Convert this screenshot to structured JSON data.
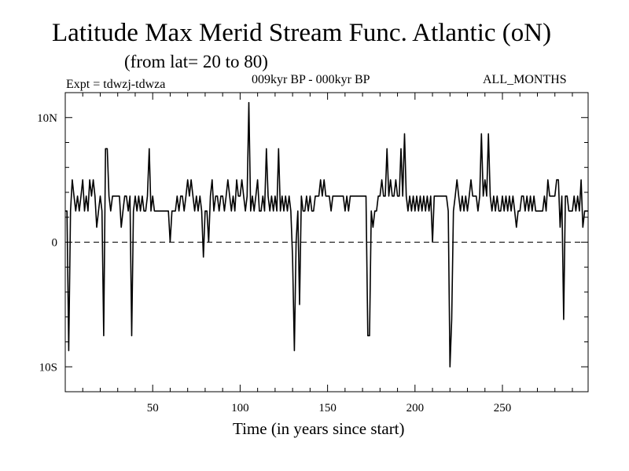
{
  "header": {
    "title": "Latitude Max Merid Stream Func. Atlantic (oN)",
    "subtitle": "(from lat= 20 to 80)",
    "experiment": "Expt = tdwzj-tdwza",
    "period": "009kyr BP - 000kyr BP",
    "months": "ALL_MONTHS"
  },
  "chart_data": {
    "type": "line",
    "title": "Latitude Max Merid Stream Func. Atlantic (oN)",
    "xlabel": "Time (in years since start)",
    "ylabel": "",
    "xlim": [
      0,
      299
    ],
    "ylim": [
      -12,
      12
    ],
    "x_ticks": [
      {
        "v": 50,
        "label": "50"
      },
      {
        "v": 100,
        "label": "100"
      },
      {
        "v": 150,
        "label": "150"
      },
      {
        "v": 200,
        "label": "200"
      },
      {
        "v": 250,
        "label": "250"
      }
    ],
    "y_ticks": [
      {
        "v": 10,
        "label": "10N"
      },
      {
        "v": 0,
        "label": "0"
      },
      {
        "v": -10,
        "label": "10S"
      }
    ],
    "zero_line": "dashed",
    "grid": false,
    "series": [
      {
        "values": [
          [
            0,
            2.5
          ],
          [
            1,
            2.5
          ],
          [
            2,
            -8.7
          ],
          [
            3,
            2.5
          ],
          [
            4,
            5.0
          ],
          [
            5,
            3.7
          ],
          [
            6,
            2.5
          ],
          [
            7,
            3.7
          ],
          [
            8,
            2.5
          ],
          [
            9,
            3.7
          ],
          [
            10,
            5.0
          ],
          [
            11,
            2.5
          ],
          [
            12,
            3.7
          ],
          [
            13,
            2.5
          ],
          [
            14,
            5.0
          ],
          [
            15,
            3.7
          ],
          [
            16,
            5.0
          ],
          [
            17,
            3.7
          ],
          [
            18,
            1.2
          ],
          [
            19,
            2.5
          ],
          [
            20,
            3.7
          ],
          [
            21,
            2.5
          ],
          [
            22,
            -7.5
          ],
          [
            23,
            7.5
          ],
          [
            24,
            7.5
          ],
          [
            25,
            3.7
          ],
          [
            26,
            2.5
          ],
          [
            27,
            3.7
          ],
          [
            28,
            3.7
          ],
          [
            29,
            3.7
          ],
          [
            30,
            3.7
          ],
          [
            31,
            3.7
          ],
          [
            32,
            1.2
          ],
          [
            33,
            2.5
          ],
          [
            34,
            3.7
          ],
          [
            35,
            3.7
          ],
          [
            36,
            2.5
          ],
          [
            37,
            3.7
          ],
          [
            38,
            -7.5
          ],
          [
            39,
            2.5
          ],
          [
            40,
            3.7
          ],
          [
            41,
            2.5
          ],
          [
            42,
            3.7
          ],
          [
            43,
            2.5
          ],
          [
            44,
            3.7
          ],
          [
            45,
            2.5
          ],
          [
            46,
            2.5
          ],
          [
            47,
            3.7
          ],
          [
            48,
            7.5
          ],
          [
            49,
            2.5
          ],
          [
            50,
            3.7
          ],
          [
            51,
            2.5
          ],
          [
            52,
            2.5
          ],
          [
            53,
            2.5
          ],
          [
            54,
            2.5
          ],
          [
            55,
            2.5
          ],
          [
            56,
            2.5
          ],
          [
            57,
            2.5
          ],
          [
            58,
            2.5
          ],
          [
            59,
            2.5
          ],
          [
            60,
            0.0
          ],
          [
            61,
            2.5
          ],
          [
            62,
            2.5
          ],
          [
            63,
            2.5
          ],
          [
            64,
            3.7
          ],
          [
            65,
            2.5
          ],
          [
            66,
            3.7
          ],
          [
            67,
            3.7
          ],
          [
            68,
            2.5
          ],
          [
            69,
            3.7
          ],
          [
            70,
            5.0
          ],
          [
            71,
            3.7
          ],
          [
            72,
            5.0
          ],
          [
            73,
            3.7
          ],
          [
            74,
            2.5
          ],
          [
            75,
            3.7
          ],
          [
            76,
            2.5
          ],
          [
            77,
            3.7
          ],
          [
            78,
            2.5
          ],
          [
            79,
            -1.2
          ],
          [
            80,
            2.5
          ],
          [
            81,
            2.5
          ],
          [
            82,
            0.0
          ],
          [
            83,
            3.7
          ],
          [
            84,
            5.0
          ],
          [
            85,
            2.5
          ],
          [
            86,
            3.7
          ],
          [
            87,
            3.7
          ],
          [
            88,
            2.5
          ],
          [
            89,
            3.7
          ],
          [
            90,
            3.7
          ],
          [
            91,
            2.5
          ],
          [
            92,
            3.7
          ],
          [
            93,
            5.0
          ],
          [
            94,
            3.7
          ],
          [
            95,
            2.5
          ],
          [
            96,
            3.7
          ],
          [
            97,
            2.5
          ],
          [
            98,
            5.0
          ],
          [
            99,
            3.7
          ],
          [
            100,
            3.7
          ],
          [
            101,
            5.0
          ],
          [
            102,
            3.7
          ],
          [
            103,
            2.5
          ],
          [
            104,
            3.7
          ],
          [
            105,
            11.2
          ],
          [
            106,
            2.5
          ],
          [
            107,
            3.7
          ],
          [
            108,
            2.5
          ],
          [
            109,
            3.7
          ],
          [
            110,
            5.0
          ],
          [
            111,
            2.5
          ],
          [
            112,
            2.5
          ],
          [
            113,
            3.7
          ],
          [
            114,
            2.5
          ],
          [
            115,
            7.5
          ],
          [
            116,
            3.7
          ],
          [
            117,
            2.5
          ],
          [
            118,
            3.7
          ],
          [
            119,
            2.5
          ],
          [
            120,
            3.7
          ],
          [
            121,
            2.5
          ],
          [
            122,
            7.5
          ],
          [
            123,
            2.5
          ],
          [
            124,
            3.7
          ],
          [
            125,
            2.5
          ],
          [
            126,
            3.7
          ],
          [
            127,
            2.5
          ],
          [
            128,
            3.7
          ],
          [
            129,
            2.5
          ],
          [
            130,
            -1.2
          ],
          [
            131,
            -8.7
          ],
          [
            132,
            0.0
          ],
          [
            133,
            2.5
          ],
          [
            134,
            -5.0
          ],
          [
            135,
            3.7
          ],
          [
            136,
            2.5
          ],
          [
            137,
            2.5
          ],
          [
            138,
            3.7
          ],
          [
            139,
            2.5
          ],
          [
            140,
            3.7
          ],
          [
            141,
            2.5
          ],
          [
            142,
            2.5
          ],
          [
            143,
            3.7
          ],
          [
            144,
            3.7
          ],
          [
            145,
            3.7
          ],
          [
            146,
            5.0
          ],
          [
            147,
            3.7
          ],
          [
            148,
            5.0
          ],
          [
            149,
            3.7
          ],
          [
            150,
            3.7
          ],
          [
            151,
            3.7
          ],
          [
            152,
            2.5
          ],
          [
            153,
            3.7
          ],
          [
            154,
            3.7
          ],
          [
            155,
            3.7
          ],
          [
            156,
            3.7
          ],
          [
            157,
            3.7
          ],
          [
            158,
            3.7
          ],
          [
            159,
            3.7
          ],
          [
            160,
            2.5
          ],
          [
            161,
            3.7
          ],
          [
            162,
            2.5
          ],
          [
            163,
            3.7
          ],
          [
            164,
            3.7
          ],
          [
            165,
            3.7
          ],
          [
            166,
            3.7
          ],
          [
            167,
            3.7
          ],
          [
            168,
            3.7
          ],
          [
            169,
            3.7
          ],
          [
            170,
            3.7
          ],
          [
            171,
            3.7
          ],
          [
            172,
            3.7
          ],
          [
            173,
            -7.5
          ],
          [
            174,
            -7.5
          ],
          [
            175,
            2.5
          ],
          [
            176,
            1.2
          ],
          [
            177,
            2.5
          ],
          [
            178,
            2.5
          ],
          [
            179,
            3.7
          ],
          [
            180,
            3.7
          ],
          [
            181,
            5.0
          ],
          [
            182,
            3.7
          ],
          [
            183,
            3.7
          ],
          [
            184,
            7.5
          ],
          [
            185,
            3.7
          ],
          [
            186,
            5.0
          ],
          [
            187,
            3.7
          ],
          [
            188,
            3.7
          ],
          [
            189,
            5.0
          ],
          [
            190,
            3.7
          ],
          [
            191,
            3.7
          ],
          [
            192,
            7.5
          ],
          [
            193,
            3.7
          ],
          [
            194,
            8.7
          ],
          [
            195,
            3.7
          ],
          [
            196,
            2.5
          ],
          [
            197,
            3.7
          ],
          [
            198,
            2.5
          ],
          [
            199,
            3.7
          ],
          [
            200,
            2.5
          ],
          [
            201,
            3.7
          ],
          [
            202,
            2.5
          ],
          [
            203,
            3.7
          ],
          [
            204,
            2.5
          ],
          [
            205,
            3.7
          ],
          [
            206,
            2.5
          ],
          [
            207,
            3.7
          ],
          [
            208,
            2.5
          ],
          [
            209,
            3.7
          ],
          [
            210,
            0.0
          ],
          [
            211,
            3.7
          ],
          [
            212,
            3.7
          ],
          [
            213,
            3.7
          ],
          [
            214,
            3.7
          ],
          [
            215,
            3.7
          ],
          [
            216,
            3.7
          ],
          [
            217,
            3.7
          ],
          [
            218,
            3.7
          ],
          [
            219,
            2.5
          ],
          [
            220,
            -10.0
          ],
          [
            221,
            -6.2
          ],
          [
            222,
            2.5
          ],
          [
            223,
            3.7
          ],
          [
            224,
            5.0
          ],
          [
            225,
            3.7
          ],
          [
            226,
            2.5
          ],
          [
            227,
            3.7
          ],
          [
            228,
            2.5
          ],
          [
            229,
            3.7
          ],
          [
            230,
            2.5
          ],
          [
            231,
            3.7
          ],
          [
            232,
            5.0
          ],
          [
            233,
            3.7
          ],
          [
            234,
            3.7
          ],
          [
            235,
            3.7
          ],
          [
            236,
            2.5
          ],
          [
            237,
            3.7
          ],
          [
            238,
            8.7
          ],
          [
            239,
            3.7
          ],
          [
            240,
            5.0
          ],
          [
            241,
            3.7
          ],
          [
            242,
            8.7
          ],
          [
            243,
            3.7
          ],
          [
            244,
            2.5
          ],
          [
            245,
            3.7
          ],
          [
            246,
            2.5
          ],
          [
            247,
            3.7
          ],
          [
            248,
            2.5
          ],
          [
            249,
            2.5
          ],
          [
            250,
            3.7
          ],
          [
            251,
            2.5
          ],
          [
            252,
            3.7
          ],
          [
            253,
            2.5
          ],
          [
            254,
            3.7
          ],
          [
            255,
            2.5
          ],
          [
            256,
            3.7
          ],
          [
            257,
            2.5
          ],
          [
            258,
            1.2
          ],
          [
            259,
            2.5
          ],
          [
            260,
            2.5
          ],
          [
            261,
            3.7
          ],
          [
            262,
            3.7
          ],
          [
            263,
            2.5
          ],
          [
            264,
            3.7
          ],
          [
            265,
            2.5
          ],
          [
            266,
            3.7
          ],
          [
            267,
            2.5
          ],
          [
            268,
            3.7
          ],
          [
            269,
            2.5
          ],
          [
            270,
            2.5
          ],
          [
            271,
            2.5
          ],
          [
            272,
            2.5
          ],
          [
            273,
            2.5
          ],
          [
            274,
            3.7
          ],
          [
            275,
            2.5
          ],
          [
            276,
            5.0
          ],
          [
            277,
            3.7
          ],
          [
            278,
            3.7
          ],
          [
            279,
            3.7
          ],
          [
            280,
            3.7
          ],
          [
            281,
            5.0
          ],
          [
            282,
            5.0
          ],
          [
            283,
            1.2
          ],
          [
            284,
            3.7
          ],
          [
            285,
            -6.2
          ],
          [
            286,
            3.7
          ],
          [
            287,
            3.7
          ],
          [
            288,
            2.5
          ],
          [
            289,
            2.5
          ],
          [
            290,
            2.5
          ],
          [
            291,
            3.7
          ],
          [
            292,
            2.5
          ],
          [
            293,
            3.7
          ],
          [
            294,
            2.5
          ],
          [
            295,
            5.0
          ],
          [
            296,
            1.2
          ],
          [
            297,
            2.5
          ],
          [
            298,
            2.5
          ],
          [
            299,
            2.5
          ]
        ]
      }
    ]
  }
}
